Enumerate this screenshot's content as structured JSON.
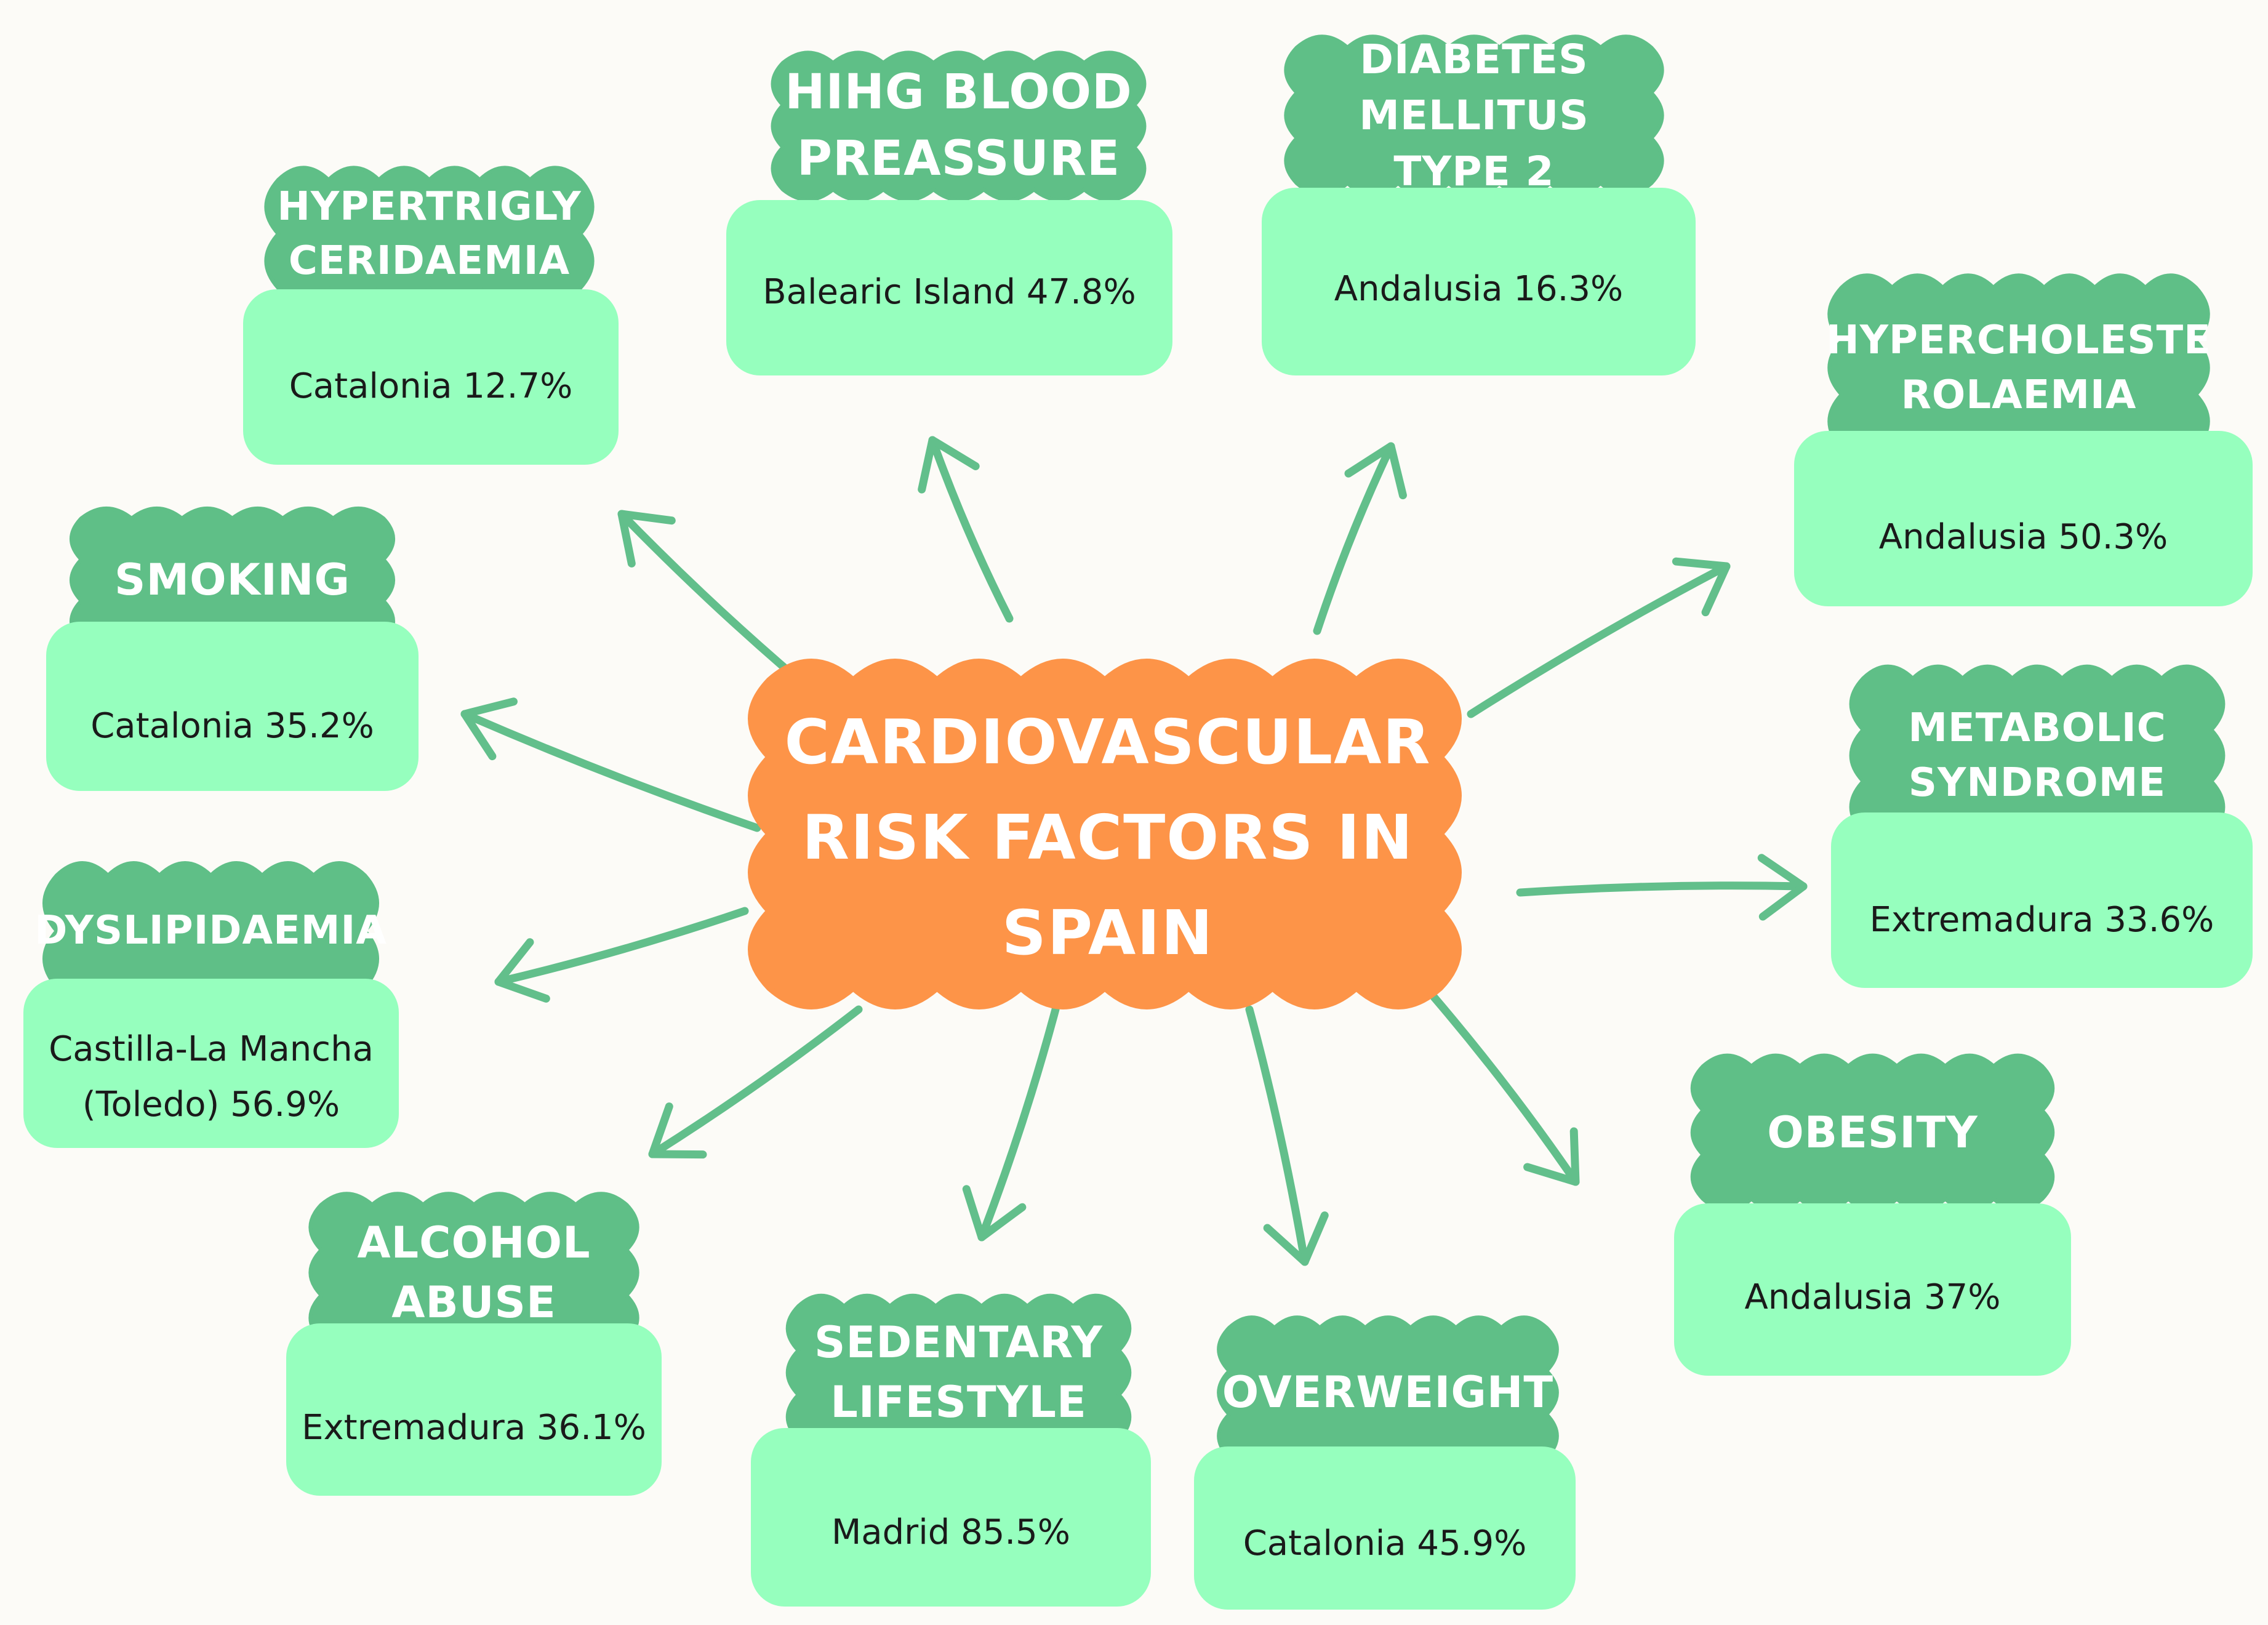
{
  "center": {
    "title": "CARDIOVASCULAR RISK FACTORS IN SPAIN"
  },
  "colors": {
    "center_cloud": "#fd9448",
    "title_cloud": "#5fbf87",
    "value_box": "#96ffbe",
    "arrow": "#62bf8b",
    "background": "#fcfbf7"
  },
  "risk_factors": [
    {
      "id": "hypertriglyceridaemia",
      "title": "HYPERTRIGLY CERIDAEMIA",
      "value": "Catalonia 12.7%"
    },
    {
      "id": "high-blood-pressure",
      "title": "HIHG BLOOD PREASSURE",
      "value": "Balearic Island 47.8%"
    },
    {
      "id": "diabetes",
      "title": "DIABETES MELLITUS TYPE 2",
      "value": "Andalusia 16.3%"
    },
    {
      "id": "hypercholesterolaemia",
      "title": "HYPERCHOLESTE ROLAEMIA",
      "value": "Andalusia 50.3%"
    },
    {
      "id": "smoking",
      "title": "SMOKING",
      "value": "Catalonia 35.2%"
    },
    {
      "id": "metabolic-syndrome",
      "title": "METABOLIC SYNDROME",
      "value": "Extremadura 33.6%"
    },
    {
      "id": "dyslipidaemia",
      "title": "DYSLIPIDAEMIA",
      "value": "Castilla-La Mancha (Toledo) 56.9%"
    },
    {
      "id": "obesity",
      "title": "OBESITY",
      "value": "Andalusia 37%"
    },
    {
      "id": "alcohol-abuse",
      "title": "ALCOHOL ABUSE",
      "value": "Extremadura 36.1%"
    },
    {
      "id": "sedentary-lifestyle",
      "title": "SEDENTARY LIFESTYLE",
      "value": "Madrid 85.5%"
    },
    {
      "id": "overweight",
      "title": "OVERWEIGHT",
      "value": "Catalonia 45.9%"
    }
  ]
}
